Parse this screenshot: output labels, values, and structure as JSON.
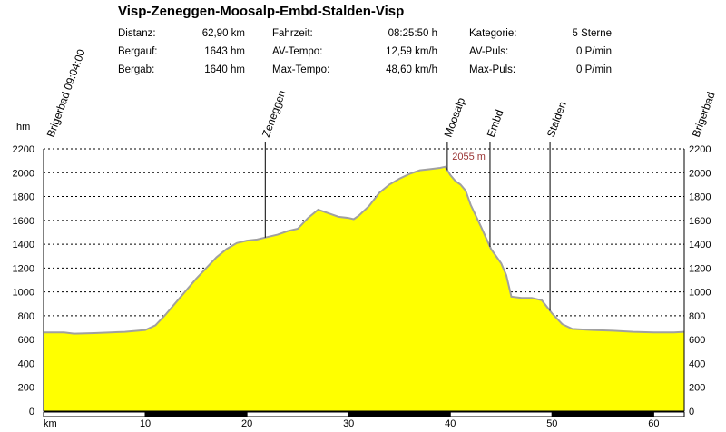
{
  "title": "Visp-Zeneggen-Moosalp-Embd-Stalden-Visp",
  "stats": {
    "col1": [
      {
        "label": "Distanz:",
        "value": "62,90 km"
      },
      {
        "label": "Bergauf:",
        "value": "1643 hm"
      },
      {
        "label": "Bergab:",
        "value": "1640 hm"
      }
    ],
    "col2": [
      {
        "label": "Fahrzeit:",
        "value": "08:25:50 h"
      },
      {
        "label": "AV-Tempo:",
        "value": "12,59 km/h"
      },
      {
        "label": "Max-Tempo:",
        "value": "48,60 km/h"
      }
    ],
    "col3": [
      {
        "label": "Kategorie:",
        "value": "5 Sterne"
      },
      {
        "label": "AV-Puls:",
        "value": "0 P/min"
      },
      {
        "label": "Max-Puls:",
        "value": "0 P/min"
      }
    ]
  },
  "chart_data": {
    "type": "area",
    "ylabel": "hm",
    "xlabel": "km",
    "xlim": [
      0,
      63
    ],
    "ylim": [
      0,
      2200
    ],
    "y_ticks": [
      0,
      200,
      400,
      600,
      800,
      1000,
      1200,
      1400,
      1600,
      1800,
      2000,
      2200
    ],
    "x_ticks": [
      10,
      20,
      30,
      40,
      50,
      60
    ],
    "grid": true,
    "fill_color": "#ffff00",
    "line_color": "#a0a0a0",
    "series": [
      {
        "x": [
          0,
          2,
          3,
          5,
          8,
          10,
          11,
          12,
          13,
          14,
          15,
          16,
          17,
          18,
          19,
          20,
          21,
          22,
          23,
          24,
          25,
          26,
          27,
          28,
          29,
          30,
          30.5,
          31,
          32,
          33,
          34,
          35,
          36,
          37,
          38,
          39,
          39.5,
          40,
          40.5,
          41,
          41.5,
          42,
          43,
          44,
          45,
          45.5,
          46,
          47,
          48,
          49,
          50,
          51,
          52,
          54,
          56,
          58,
          60,
          62,
          63
        ],
        "y": [
          660,
          660,
          650,
          655,
          665,
          680,
          720,
          810,
          910,
          1010,
          1110,
          1200,
          1290,
          1360,
          1410,
          1430,
          1440,
          1460,
          1480,
          1510,
          1530,
          1620,
          1690,
          1660,
          1630,
          1620,
          1610,
          1640,
          1720,
          1830,
          1900,
          1950,
          1990,
          2020,
          2030,
          2040,
          2050,
          1980,
          1930,
          1900,
          1850,
          1730,
          1550,
          1360,
          1240,
          1140,
          960,
          950,
          950,
          930,
          820,
          730,
          690,
          680,
          675,
          665,
          660,
          660,
          665
        ]
      }
    ],
    "waypoints": [
      {
        "name": "Brigerbad 09:04:00",
        "km": 0
      },
      {
        "name": "Zeneggen",
        "km": 21.8
      },
      {
        "name": "Moosalp",
        "km": 39.7
      },
      {
        "name": "Embd",
        "km": 43.9
      },
      {
        "name": "Stalden",
        "km": 49.8
      },
      {
        "name": "Brigerbad",
        "km": 62.9
      }
    ],
    "annotations": [
      {
        "text": "2055 m",
        "km": 40.0,
        "value": 2055
      }
    ]
  }
}
